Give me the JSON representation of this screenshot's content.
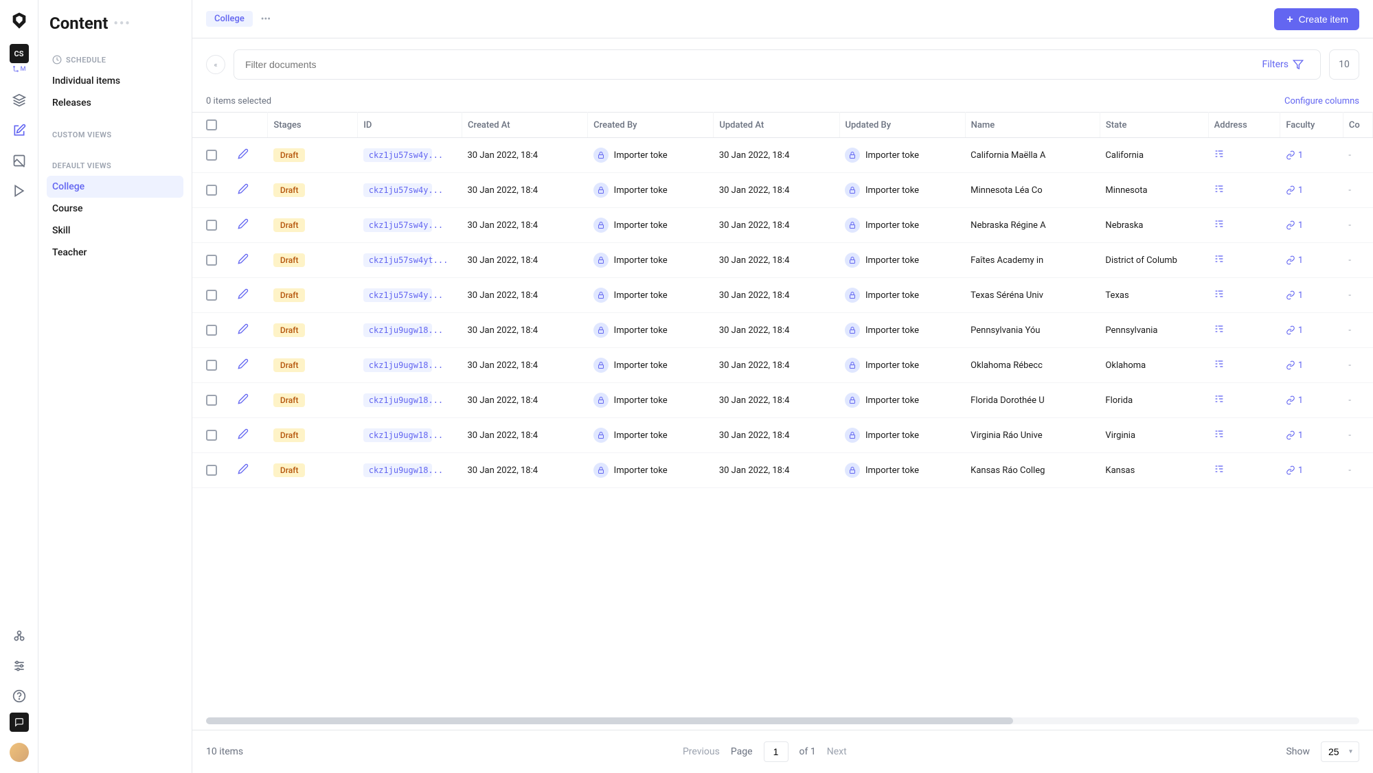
{
  "sidebar": {
    "title": "Content",
    "badge": "CS",
    "subdomain": "M",
    "schedule_header": "SCHEDULE",
    "schedule_items": [
      "Individual items",
      "Releases"
    ],
    "custom_views_header": "CUSTOM VIEWS",
    "default_views_header": "DEFAULT VIEWS",
    "default_views": [
      "College",
      "Course",
      "Skill",
      "Teacher"
    ],
    "active_view": "College"
  },
  "topbar": {
    "breadcrumb": "College",
    "create_label": "Create item"
  },
  "filter": {
    "placeholder": "Filter documents",
    "filters_label": "Filters",
    "result_count": "10"
  },
  "selection": {
    "selected_text": "0 items selected",
    "configure_label": "Configure columns"
  },
  "columns": [
    "Stages",
    "ID",
    "Created At",
    "Created By",
    "Updated At",
    "Updated By",
    "Name",
    "State",
    "Address",
    "Faculty",
    "Co"
  ],
  "rows": [
    {
      "stage": "Draft",
      "id": "ckz1ju57sw4y...",
      "created_at": "30 Jan 2022, 18:4",
      "created_by": "Importer toke",
      "updated_at": "30 Jan 2022, 18:4",
      "updated_by": "Importer toke",
      "name": "California Maëlla A",
      "state": "California",
      "faculty": "1"
    },
    {
      "stage": "Draft",
      "id": "ckz1ju57sw4y...",
      "created_at": "30 Jan 2022, 18:4",
      "created_by": "Importer toke",
      "updated_at": "30 Jan 2022, 18:4",
      "updated_by": "Importer toke",
      "name": "Minnesota Léa Co",
      "state": "Minnesota",
      "faculty": "1"
    },
    {
      "stage": "Draft",
      "id": "ckz1ju57sw4y...",
      "created_at": "30 Jan 2022, 18:4",
      "created_by": "Importer toke",
      "updated_at": "30 Jan 2022, 18:4",
      "updated_by": "Importer toke",
      "name": "Nebraska Régine A",
      "state": "Nebraska",
      "faculty": "1"
    },
    {
      "stage": "Draft",
      "id": "ckz1ju57sw4yt...",
      "created_at": "30 Jan 2022, 18:4",
      "created_by": "Importer toke",
      "updated_at": "30 Jan 2022, 18:4",
      "updated_by": "Importer toke",
      "name": "Faîtes Academy in",
      "state": "District of Columb",
      "faculty": "1"
    },
    {
      "stage": "Draft",
      "id": "ckz1ju57sw4y...",
      "created_at": "30 Jan 2022, 18:4",
      "created_by": "Importer toke",
      "updated_at": "30 Jan 2022, 18:4",
      "updated_by": "Importer toke",
      "name": "Texas Séréna Univ",
      "state": "Texas",
      "faculty": "1"
    },
    {
      "stage": "Draft",
      "id": "ckz1ju9ugw18...",
      "created_at": "30 Jan 2022, 18:4",
      "created_by": "Importer toke",
      "updated_at": "30 Jan 2022, 18:4",
      "updated_by": "Importer toke",
      "name": "Pennsylvania Yóu",
      "state": "Pennsylvania",
      "faculty": "1"
    },
    {
      "stage": "Draft",
      "id": "ckz1ju9ugw18...",
      "created_at": "30 Jan 2022, 18:4",
      "created_by": "Importer toke",
      "updated_at": "30 Jan 2022, 18:4",
      "updated_by": "Importer toke",
      "name": "Oklahoma Rébecc",
      "state": "Oklahoma",
      "faculty": "1"
    },
    {
      "stage": "Draft",
      "id": "ckz1ju9ugw18...",
      "created_at": "30 Jan 2022, 18:4",
      "created_by": "Importer toke",
      "updated_at": "30 Jan 2022, 18:4",
      "updated_by": "Importer toke",
      "name": "Florida Dorothée U",
      "state": "Florida",
      "faculty": "1"
    },
    {
      "stage": "Draft",
      "id": "ckz1ju9ugw18...",
      "created_at": "30 Jan 2022, 18:4",
      "created_by": "Importer toke",
      "updated_at": "30 Jan 2022, 18:4",
      "updated_by": "Importer toke",
      "name": "Virginia Ráo Unive",
      "state": "Virginia",
      "faculty": "1"
    },
    {
      "stage": "Draft",
      "id": "ckz1ju9ugw18...",
      "created_at": "30 Jan 2022, 18:4",
      "created_by": "Importer toke",
      "updated_at": "30 Jan 2022, 18:4",
      "updated_by": "Importer toke",
      "name": "Kansas Ráo Colleg",
      "state": "Kansas",
      "faculty": "1"
    }
  ],
  "footer": {
    "items_text": "10 items",
    "prev_label": "Previous",
    "page_label": "Page",
    "page_current": "1",
    "page_total": "of 1",
    "next_label": "Next",
    "show_label": "Show",
    "show_value": "25"
  }
}
